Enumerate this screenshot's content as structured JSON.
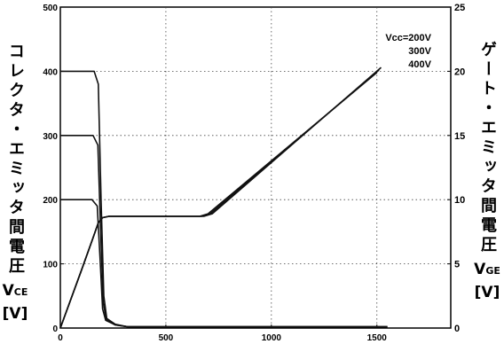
{
  "chart_data": {
    "type": "line",
    "title": "",
    "x": {
      "ticks": [
        0,
        500,
        1000,
        1500
      ],
      "lim": [
        0,
        1850
      ]
    },
    "y_left": {
      "label_text": "コレクタ・エミッタ間電圧",
      "symbol": "V",
      "symbol_sub": "CE",
      "unit": "[V]",
      "ticks": [
        0,
        100,
        200,
        300,
        400,
        500
      ],
      "lim": [
        0,
        500
      ]
    },
    "y_right": {
      "label_text": "ゲート・エミッタ間電圧",
      "symbol": "V",
      "symbol_sub": "GE",
      "unit": "[V]",
      "ticks": [
        0,
        5,
        10,
        15,
        20,
        25
      ],
      "lim": [
        0,
        25
      ]
    },
    "grid": true,
    "legend": {
      "placement": "top-right",
      "entries": [
        "Vcc=200V",
        "300V",
        "400V"
      ]
    },
    "series": [
      {
        "name": "Vcc=200V",
        "axis": "left",
        "x": [
          0,
          150,
          175,
          188,
          200,
          215,
          260,
          320,
          1550
        ],
        "y": [
          200,
          200,
          190,
          110,
          30,
          12,
          5,
          2,
          2
        ]
      },
      {
        "name": "300V",
        "axis": "left",
        "x": [
          0,
          155,
          178,
          190,
          203,
          218,
          260,
          320,
          1550
        ],
        "y": [
          300,
          300,
          285,
          160,
          40,
          13,
          5,
          2,
          2
        ]
      },
      {
        "name": "400V",
        "axis": "left",
        "x": [
          0,
          160,
          180,
          193,
          206,
          220,
          260,
          320,
          1550
        ],
        "y": [
          400,
          400,
          380,
          200,
          50,
          15,
          6,
          2,
          2
        ]
      },
      {
        "name": "Vcc=200V",
        "axis": "right",
        "x": [
          0,
          100,
          150,
          180,
          200,
          230,
          660,
          700,
          1500
        ],
        "y": [
          0,
          4.5,
          6.8,
          8.2,
          8.6,
          8.7,
          8.7,
          8.9,
          19.9
        ]
      },
      {
        "name": "300V",
        "axis": "right",
        "x": [
          0,
          100,
          150,
          180,
          200,
          230,
          670,
          710,
          1510
        ],
        "y": [
          0,
          4.5,
          6.8,
          8.2,
          8.6,
          8.7,
          8.7,
          8.9,
          20.1
        ]
      },
      {
        "name": "400V",
        "axis": "right",
        "x": [
          0,
          100,
          150,
          180,
          200,
          230,
          680,
          720,
          1520
        ],
        "y": [
          0,
          4.5,
          6.8,
          8.2,
          8.6,
          8.7,
          8.7,
          8.9,
          20.3
        ]
      }
    ]
  }
}
